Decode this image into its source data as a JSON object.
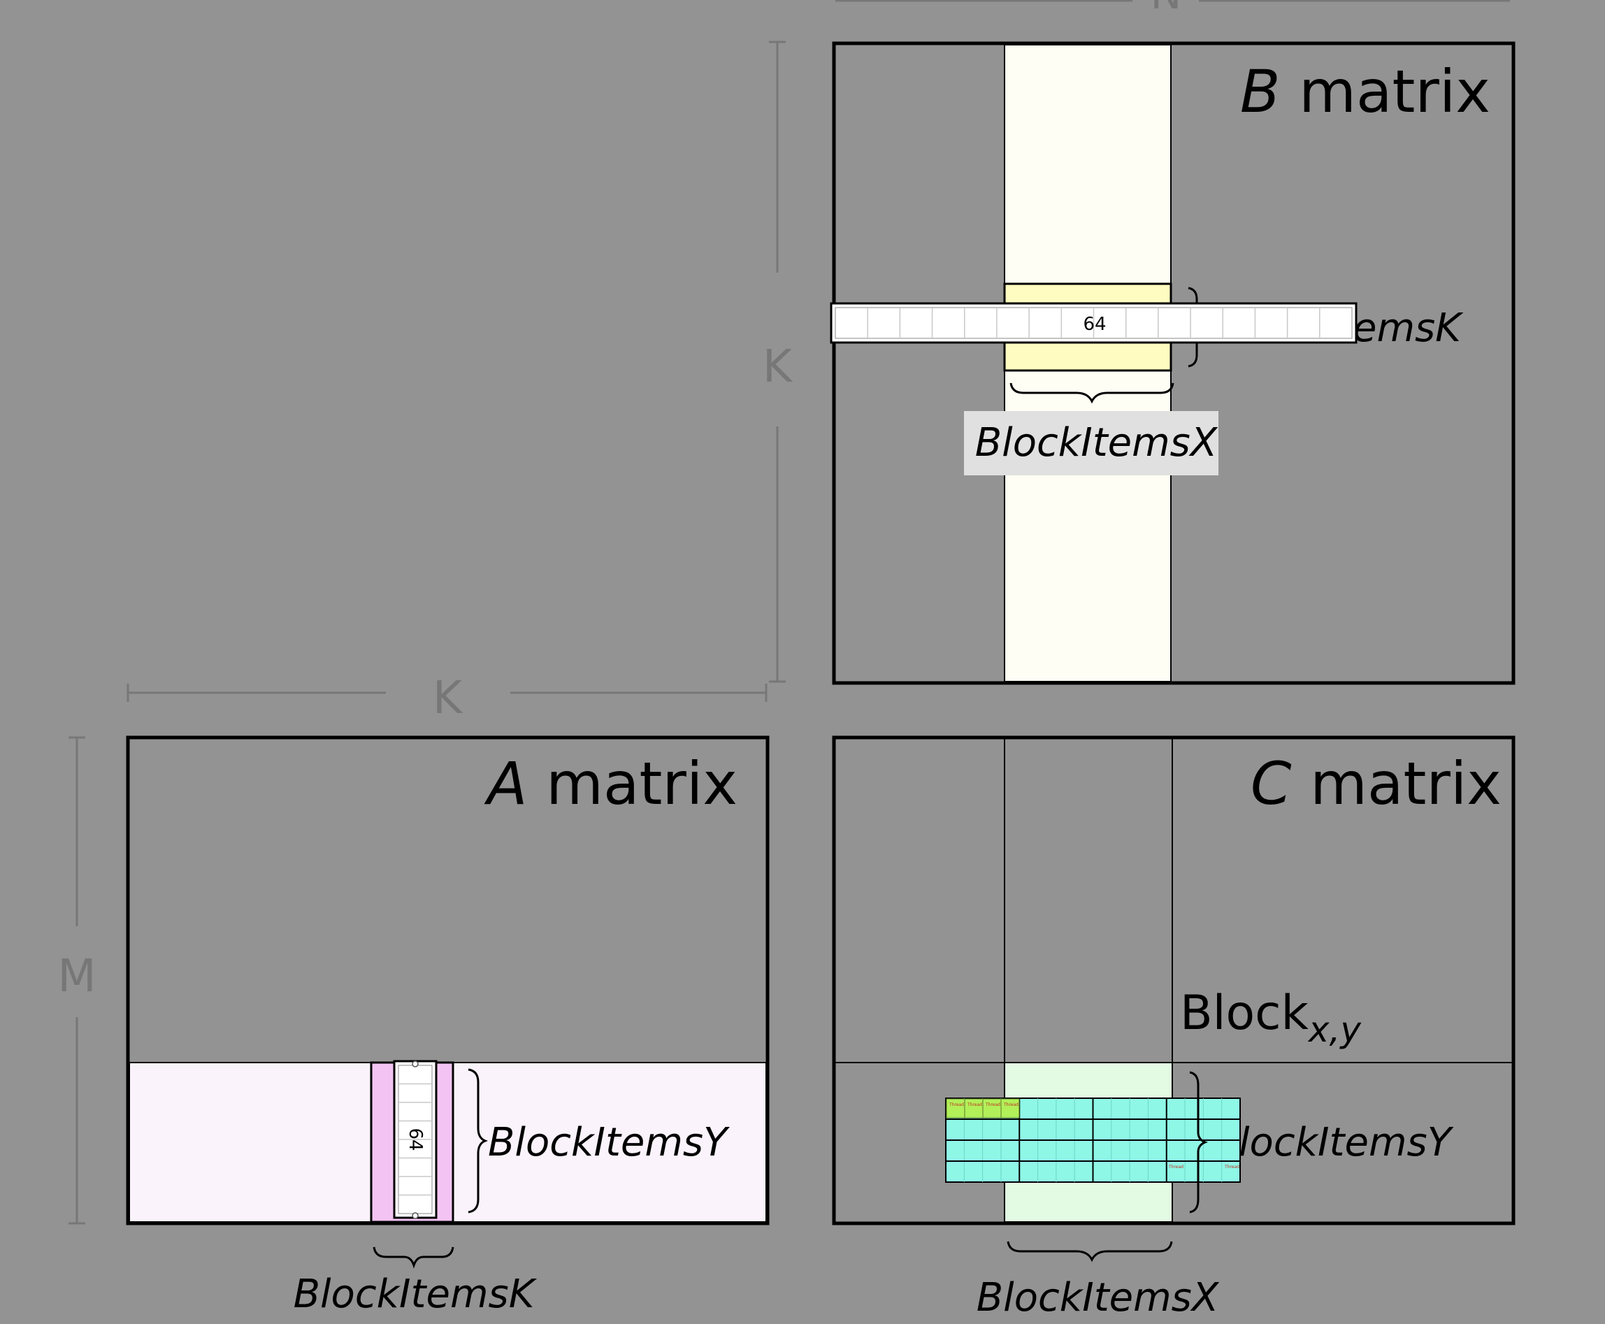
{
  "dimensions": {
    "n": "N",
    "k_vertical": "K",
    "k_horizontal": "K",
    "m": "M"
  },
  "b_matrix": {
    "title_var": "B",
    "title_word": "matrix",
    "block_items_k_partial": "emsK",
    "block_items_x": "BlockItemsX",
    "ruler_value": "64"
  },
  "a_matrix": {
    "title_var": "A",
    "title_word": "matrix",
    "block_items_y": "BlockItemsY",
    "block_items_k": "BlockItemsK",
    "ruler_value": "64"
  },
  "c_matrix": {
    "title_var": "C",
    "title_word": "matrix",
    "block_label": "Block",
    "block_subscript": "x,y",
    "block_items_y_partial": "lockItemsY",
    "block_items_x": "BlockItemsX",
    "thread_labels": [
      "Thread",
      "Thread",
      "Thread",
      "Thread",
      "Thread",
      "Thread"
    ]
  },
  "colors": {
    "background": "#939393",
    "b_column": "#fefef4",
    "b_tile": "#fefcc0",
    "a_row": "#fbf3fb",
    "a_tile": "#f3c4f3",
    "c_block": "#e3fae3",
    "c_warp": "#8ff7e6",
    "c_thread": "#b2f05a",
    "dim_gray": "#777777"
  }
}
